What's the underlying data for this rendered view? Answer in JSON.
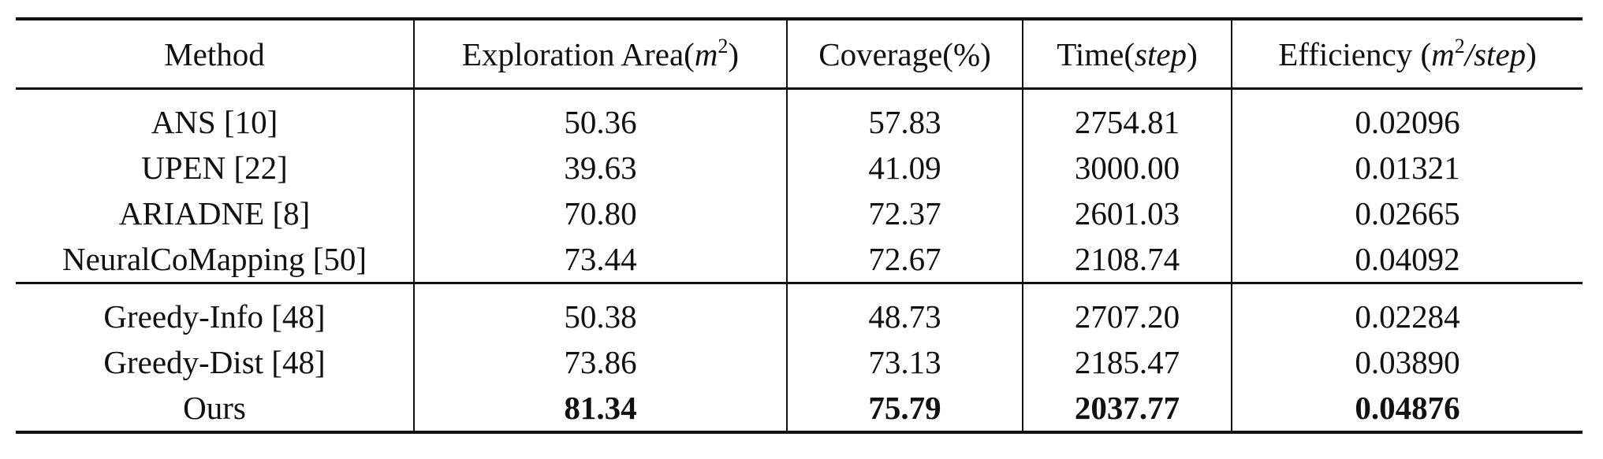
{
  "table": {
    "headers": {
      "method": "Method",
      "area_prefix": "Exploration Area(",
      "area_unit": "m",
      "area_exp": "2",
      "area_suffix": ")",
      "coverage": "Coverage(%)",
      "time_prefix": "Time(",
      "time_unit": "step",
      "time_suffix": ")",
      "eff_prefix": "Efficiency (",
      "eff_unit_a": "m",
      "eff_exp": "2",
      "eff_unit_b": "/step",
      "eff_suffix": ")"
    },
    "rows": [
      {
        "method": "ANS [10]",
        "area": "50.36",
        "coverage": "57.83",
        "time": "2754.81",
        "efficiency": "0.02096"
      },
      {
        "method": "UPEN [22]",
        "area": "39.63",
        "coverage": "41.09",
        "time": "3000.00",
        "efficiency": "0.01321"
      },
      {
        "method": "ARIADNE [8]",
        "area": "70.80",
        "coverage": "72.37",
        "time": "2601.03",
        "efficiency": "0.02665"
      },
      {
        "method": "NeuralCoMapping [50]",
        "area": "73.44",
        "coverage": "72.67",
        "time": "2108.74",
        "efficiency": "0.04092"
      },
      {
        "method": "Greedy-Info [48]",
        "area": "50.38",
        "coverage": "48.73",
        "time": "2707.20",
        "efficiency": "0.02284"
      },
      {
        "method": "Greedy-Dist [48]",
        "area": "73.86",
        "coverage": "73.13",
        "time": "2185.47",
        "efficiency": "0.03890"
      },
      {
        "method": "Ours",
        "area": "81.34",
        "coverage": "75.79",
        "time": "2037.77",
        "efficiency": "0.04876"
      }
    ]
  }
}
